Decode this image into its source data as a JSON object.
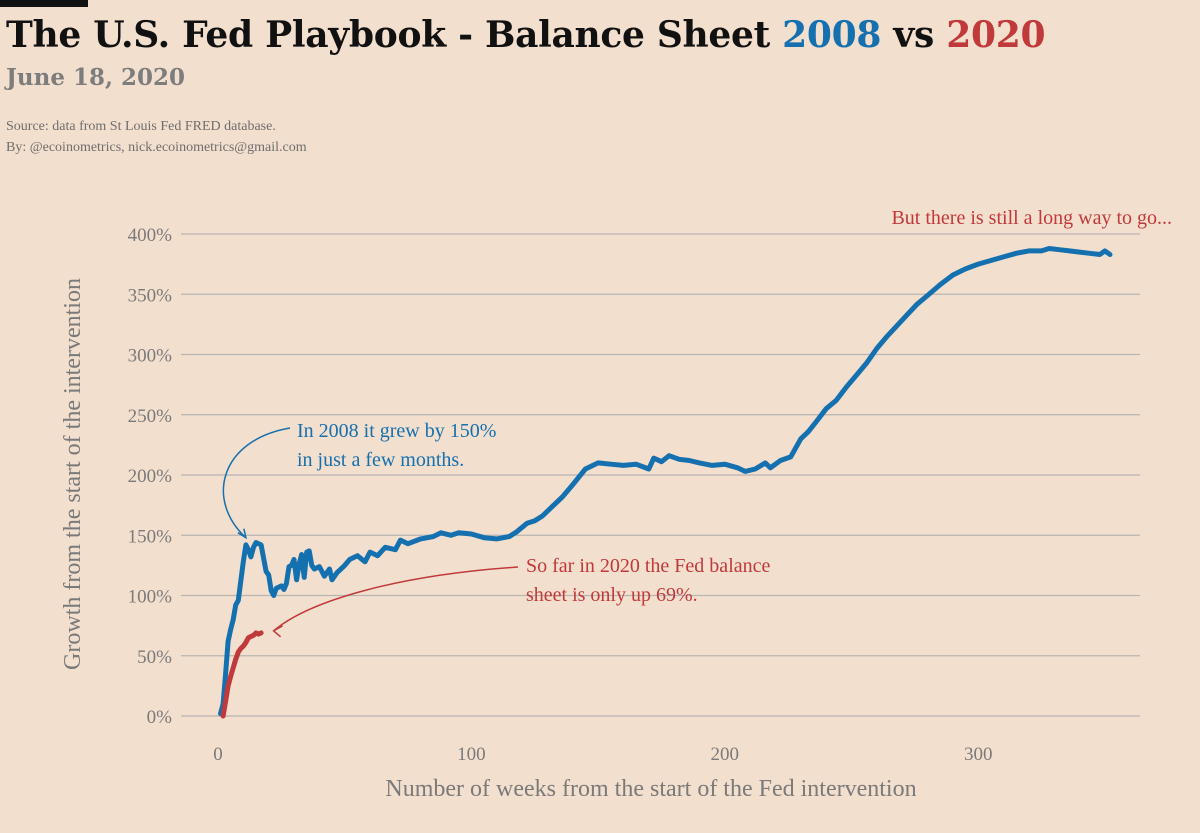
{
  "header": {
    "title_prefix": "The U.S. Fed Playbook - Balance Sheet ",
    "title_year1": "2008",
    "title_mid": " vs ",
    "title_year2": "2020",
    "date": "June 18, 2020",
    "source": "Source: data from  St Louis Fed FRED database.",
    "by": "By: @ecoinometrics, nick.ecoinometrics@gmail.com"
  },
  "colors": {
    "background": "#f3dfce",
    "series_2008": "#1470ae",
    "series_2020": "#c0393b",
    "grid": "#b7b5b3",
    "text_muted": "#7a7a7a"
  },
  "chart_data": {
    "type": "line",
    "xlabel": "Number of weeks from the start of the Fed intervention",
    "ylabel": "Growth from the start of the intervention",
    "xlim": [
      -15,
      375
    ],
    "ylim": [
      0,
      400
    ],
    "x_ticks": [
      0,
      100,
      200,
      300
    ],
    "y_ticks": [
      0,
      50,
      100,
      150,
      200,
      250,
      300,
      350,
      400
    ],
    "y_tick_suffix": "%",
    "series": [
      {
        "name": "2008",
        "color": "#1470ae",
        "points": [
          [
            1,
            2
          ],
          [
            2,
            10
          ],
          [
            3,
            35
          ],
          [
            4,
            62
          ],
          [
            5,
            72
          ],
          [
            6,
            80
          ],
          [
            7,
            92
          ],
          [
            8,
            96
          ],
          [
            9,
            112
          ],
          [
            10,
            128
          ],
          [
            11,
            142
          ],
          [
            12,
            138
          ],
          [
            13,
            132
          ],
          [
            14,
            140
          ],
          [
            15,
            144
          ],
          [
            16,
            143
          ],
          [
            17,
            142
          ],
          [
            18,
            131
          ],
          [
            19,
            120
          ],
          [
            20,
            117
          ],
          [
            21,
            104
          ],
          [
            22,
            100
          ],
          [
            23,
            106
          ],
          [
            24,
            107
          ],
          [
            25,
            108
          ],
          [
            26,
            105
          ],
          [
            27,
            110
          ],
          [
            28,
            124
          ],
          [
            29,
            125
          ],
          [
            30,
            130
          ],
          [
            31,
            113
          ],
          [
            32,
            126
          ],
          [
            33,
            134
          ],
          [
            34,
            115
          ],
          [
            35,
            136
          ],
          [
            36,
            137
          ],
          [
            37,
            125
          ],
          [
            38,
            122
          ],
          [
            40,
            124
          ],
          [
            42,
            116
          ],
          [
            44,
            122
          ],
          [
            45,
            113
          ],
          [
            47,
            119
          ],
          [
            50,
            125
          ],
          [
            52,
            130
          ],
          [
            55,
            133
          ],
          [
            58,
            128
          ],
          [
            60,
            136
          ],
          [
            63,
            133
          ],
          [
            66,
            140
          ],
          [
            70,
            138
          ],
          [
            72,
            146
          ],
          [
            75,
            143
          ],
          [
            80,
            147
          ],
          [
            85,
            149
          ],
          [
            88,
            152
          ],
          [
            92,
            150
          ],
          [
            95,
            152
          ],
          [
            100,
            151
          ],
          [
            105,
            148
          ],
          [
            110,
            147
          ],
          [
            115,
            149
          ],
          [
            118,
            153
          ],
          [
            122,
            160
          ],
          [
            125,
            162
          ],
          [
            128,
            166
          ],
          [
            132,
            174
          ],
          [
            136,
            182
          ],
          [
            140,
            192
          ],
          [
            145,
            205
          ],
          [
            150,
            210
          ],
          [
            155,
            209
          ],
          [
            160,
            208
          ],
          [
            165,
            209
          ],
          [
            170,
            205
          ],
          [
            172,
            214
          ],
          [
            175,
            211
          ],
          [
            178,
            216
          ],
          [
            182,
            213
          ],
          [
            186,
            212
          ],
          [
            190,
            210
          ],
          [
            195,
            208
          ],
          [
            200,
            209
          ],
          [
            205,
            206
          ],
          [
            208,
            203
          ],
          [
            212,
            205
          ],
          [
            216,
            210
          ],
          [
            218,
            206
          ],
          [
            222,
            212
          ],
          [
            226,
            215
          ],
          [
            230,
            230
          ],
          [
            233,
            236
          ],
          [
            236,
            244
          ],
          [
            240,
            255
          ],
          [
            244,
            262
          ],
          [
            248,
            273
          ],
          [
            252,
            283
          ],
          [
            256,
            293
          ],
          [
            260,
            305
          ],
          [
            264,
            315
          ],
          [
            268,
            324
          ],
          [
            272,
            333
          ],
          [
            276,
            342
          ],
          [
            280,
            349
          ],
          [
            285,
            358
          ],
          [
            290,
            366
          ],
          [
            295,
            371
          ],
          [
            300,
            375
          ],
          [
            305,
            378
          ],
          [
            310,
            381
          ],
          [
            315,
            384
          ],
          [
            320,
            386
          ],
          [
            325,
            386
          ],
          [
            328,
            388
          ],
          [
            332,
            387
          ],
          [
            336,
            386
          ],
          [
            340,
            385
          ],
          [
            344,
            384
          ],
          [
            348,
            383
          ],
          [
            350,
            386
          ],
          [
            352,
            383
          ]
        ]
      },
      {
        "name": "2020",
        "color": "#c0393b",
        "points": [
          [
            2,
            0
          ],
          [
            3,
            12
          ],
          [
            4,
            25
          ],
          [
            5,
            33
          ],
          [
            6,
            40
          ],
          [
            7,
            47
          ],
          [
            8,
            53
          ],
          [
            9,
            56
          ],
          [
            10,
            58
          ],
          [
            11,
            61
          ],
          [
            12,
            65
          ],
          [
            13,
            66
          ],
          [
            14,
            67
          ],
          [
            15,
            69
          ],
          [
            16,
            68
          ],
          [
            17,
            69
          ]
        ]
      }
    ],
    "annotations": [
      {
        "text_line1": "In 2008 it grew by 150%",
        "text_line2": "in just a few months.",
        "color": "#1470ae",
        "arrow_to": [
          11,
          143
        ]
      },
      {
        "text_line1": "So far in 2020 the Fed balance",
        "text_line2": "sheet is only up 69%.",
        "color": "#c0393b",
        "arrow_to": [
          18,
          69
        ]
      },
      {
        "text_line1": "But there is still a long way to go...",
        "color": "#c0393b"
      }
    ]
  }
}
